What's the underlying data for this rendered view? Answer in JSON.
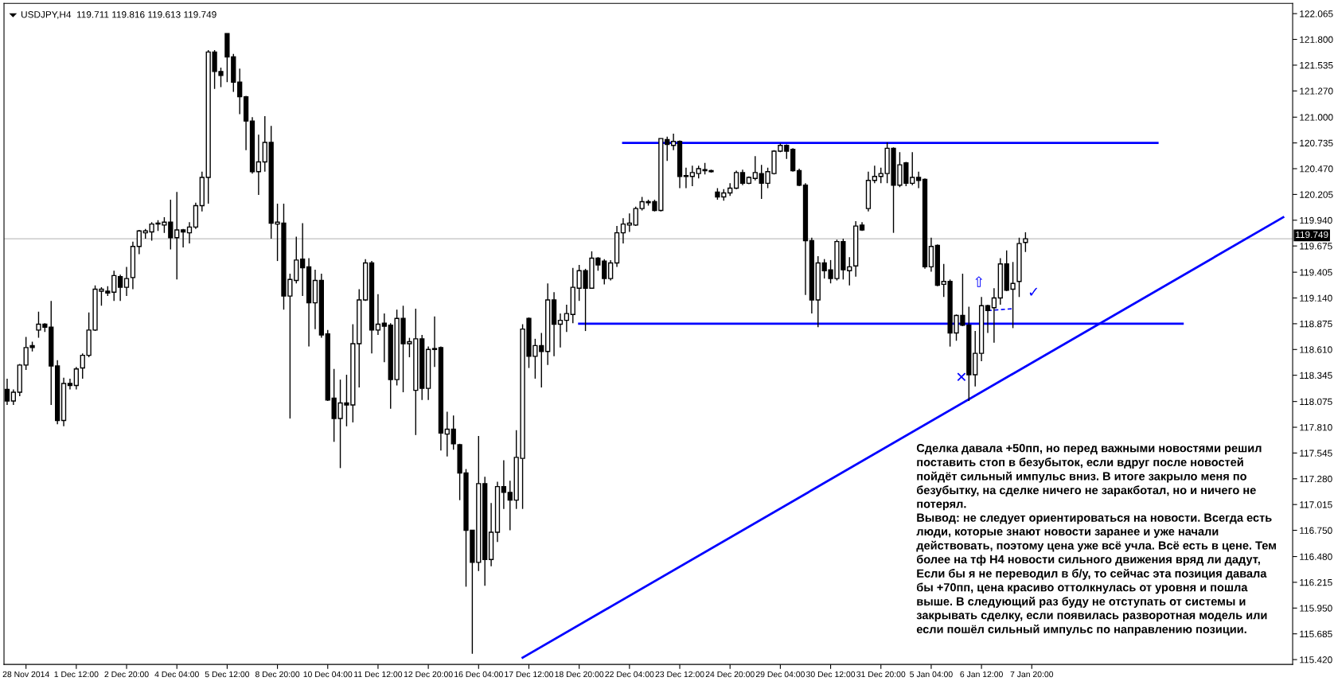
{
  "chart_data": {
    "type": "candlestick",
    "title": "USDJPY,H4  119.711 119.816 119.613 119.749",
    "categories": [
      null,
      null,
      null,
      "28 Nov 2014",
      null,
      null,
      null,
      null,
      null,
      null,
      null,
      "1 Dec 12:00",
      null,
      null,
      null,
      null,
      null,
      null,
      null,
      "2 Dec 20:00",
      null,
      null,
      null,
      null,
      null,
      null,
      null,
      "4 Dec 04:00",
      null,
      null,
      null,
      null,
      null,
      null,
      null,
      "5 Dec 12:00",
      null,
      null,
      null,
      null,
      null,
      null,
      null,
      "8 Dec 20:00",
      null,
      null,
      null,
      null,
      null,
      null,
      null,
      "10 Dec 04:00",
      null,
      null,
      null,
      null,
      null,
      null,
      null,
      "11 Dec 12:00",
      null,
      null,
      null,
      null,
      null,
      null,
      null,
      "12 Dec 20:00",
      null,
      null,
      null,
      null,
      null,
      null,
      null,
      "16 Dec 04:00",
      null,
      null,
      null,
      null,
      null,
      null,
      null,
      "17 Dec 12:00",
      null,
      null,
      null,
      null,
      null,
      null,
      null,
      "18 Dec 20:00",
      null,
      null,
      null,
      null,
      null,
      null,
      null,
      "22 Dec 04:00",
      null,
      null,
      null,
      null,
      null,
      null,
      null,
      "23 Dec 12:00",
      null,
      null,
      null,
      null,
      null,
      null,
      null,
      "24 Dec 20:00",
      null,
      null,
      null,
      null,
      null,
      null,
      null,
      "29 Dec 04:00",
      null,
      null,
      null,
      null,
      null,
      null,
      null,
      "30 Dec 12:00",
      null,
      null,
      null,
      null,
      null,
      null,
      null,
      "31 Dec 20:00",
      null,
      null,
      null,
      null,
      null,
      null,
      null,
      "5 Jan 04:00",
      null,
      null,
      null,
      null,
      null,
      null,
      null,
      "6 Jan 12:00",
      null,
      null,
      null,
      null,
      null,
      null,
      null,
      "7 Jan 20:00",
      null,
      null,
      null,
      null,
      null,
      null,
      null,
      null,
      null,
      null,
      null,
      null,
      null,
      null,
      null,
      null,
      null,
      null,
      null,
      null,
      null,
      null,
      null,
      null,
      null,
      null,
      null,
      null,
      null,
      null,
      null,
      null,
      null,
      null,
      null,
      null,
      null,
      null,
      null,
      null,
      null
    ],
    "ylim": [
      115.37,
      122.17
    ],
    "yticks": [
      {
        "value": 122.065,
        "label": "122.065"
      },
      {
        "value": 121.8,
        "label": "121.800"
      },
      {
        "value": 121.535,
        "label": "121.535"
      },
      {
        "value": 121.27,
        "label": "121.270"
      },
      {
        "value": 121.0,
        "label": "121.000"
      },
      {
        "value": 120.735,
        "label": "120.735"
      },
      {
        "value": 120.47,
        "label": "120.470"
      },
      {
        "value": 120.205,
        "label": "120.205"
      },
      {
        "value": 119.94,
        "label": "119.940"
      },
      {
        "value": 119.675,
        "label": "119.675"
      },
      {
        "value": 119.405,
        "label": "119.405"
      },
      {
        "value": 119.14,
        "label": "119.140"
      },
      {
        "value": 118.875,
        "label": "118.875"
      },
      {
        "value": 118.61,
        "label": "118.610"
      },
      {
        "value": 118.345,
        "label": "118.345"
      },
      {
        "value": 118.075,
        "label": "118.075"
      },
      {
        "value": 117.81,
        "label": "117.810"
      },
      {
        "value": 117.545,
        "label": "117.545"
      },
      {
        "value": 117.28,
        "label": "117.280"
      },
      {
        "value": 117.015,
        "label": "117.015"
      },
      {
        "value": 116.75,
        "label": "116.750"
      },
      {
        "value": 116.48,
        "label": "116.480"
      },
      {
        "value": 116.215,
        "label": "116.215"
      },
      {
        "value": 115.95,
        "label": "115.950"
      },
      {
        "value": 115.685,
        "label": "115.685"
      },
      {
        "value": 115.42,
        "label": "115.420"
      }
    ],
    "ref_lines": [
      {
        "axis": "y",
        "value": 119.749,
        "label": "119.749",
        "color": "#c0c0c0"
      }
    ],
    "ohlc": [
      [
        118.2,
        118.31,
        118.04,
        118.08
      ],
      [
        118.08,
        118.2,
        118.04,
        118.17
      ],
      [
        118.17,
        118.46,
        118.13,
        118.45
      ],
      [
        118.45,
        118.74,
        118.4,
        118.63
      ],
      [
        118.65,
        118.69,
        118.59,
        118.63
      ],
      [
        118.81,
        119.0,
        118.73,
        118.87
      ],
      [
        118.87,
        118.88,
        118.79,
        118.84
      ],
      [
        118.84,
        119.11,
        118.04,
        118.44
      ],
      [
        118.44,
        118.5,
        117.84,
        117.88
      ],
      [
        117.88,
        118.32,
        117.82,
        118.26
      ],
      [
        118.26,
        118.31,
        118.2,
        118.24
      ],
      [
        118.24,
        118.43,
        118.2,
        118.41
      ],
      [
        118.42,
        118.57,
        118.31,
        118.55
      ],
      [
        118.55,
        118.99,
        118.53,
        118.81
      ],
      [
        118.81,
        119.27,
        118.8,
        119.23
      ],
      [
        119.21,
        119.25,
        119.06,
        119.23
      ],
      [
        119.21,
        119.26,
        119.16,
        119.19
      ],
      [
        119.2,
        119.42,
        119.11,
        119.37
      ],
      [
        119.36,
        119.38,
        119.11,
        119.25
      ],
      [
        119.25,
        119.46,
        119.16,
        119.34
      ],
      [
        119.35,
        119.72,
        119.23,
        119.67
      ],
      [
        119.67,
        119.84,
        119.59,
        119.83
      ],
      [
        119.81,
        119.85,
        119.75,
        119.83
      ],
      [
        119.82,
        119.92,
        119.73,
        119.9
      ],
      [
        119.9,
        119.94,
        119.83,
        119.91
      ],
      [
        119.89,
        119.97,
        119.81,
        119.92
      ],
      [
        119.92,
        120.15,
        119.64,
        119.76
      ],
      [
        119.76,
        120.23,
        119.33,
        119.84
      ],
      [
        119.84,
        119.85,
        119.66,
        119.82
      ],
      [
        119.81,
        119.92,
        119.7,
        119.87
      ],
      [
        119.87,
        120.12,
        119.85,
        120.09
      ],
      [
        120.09,
        120.44,
        120.03,
        120.38
      ],
      [
        120.38,
        121.69,
        120.11,
        121.67
      ],
      [
        121.67,
        121.69,
        121.29,
        121.47
      ],
      [
        121.47,
        121.51,
        121.31,
        121.43
      ],
      [
        121.86,
        121.86,
        121.36,
        121.62
      ],
      [
        121.62,
        121.65,
        121.26,
        121.36
      ],
      [
        121.36,
        121.5,
        121.03,
        121.21
      ],
      [
        121.21,
        121.22,
        120.66,
        120.96
      ],
      [
        120.96,
        121.0,
        120.42,
        120.44
      ],
      [
        120.44,
        120.82,
        120.2,
        120.54
      ],
      [
        120.54,
        121.01,
        120.44,
        120.74
      ],
      [
        120.74,
        120.91,
        119.75,
        119.91
      ],
      [
        119.9,
        120.11,
        119.52,
        119.92
      ],
      [
        119.91,
        120.11,
        119.02,
        119.16
      ],
      [
        119.16,
        119.39,
        117.9,
        119.33
      ],
      [
        119.32,
        119.77,
        119.29,
        119.53
      ],
      [
        119.54,
        119.91,
        119.16,
        119.45
      ],
      [
        119.46,
        119.55,
        118.64,
        119.09
      ],
      [
        119.09,
        119.43,
        118.82,
        119.32
      ],
      [
        119.32,
        119.39,
        118.73,
        118.76
      ],
      [
        118.77,
        118.81,
        118.08,
        118.09
      ],
      [
        118.11,
        118.41,
        117.66,
        117.9
      ],
      [
        117.9,
        118.3,
        117.39,
        118.06
      ],
      [
        118.06,
        118.35,
        117.82,
        118.04
      ],
      [
        118.04,
        118.87,
        117.86,
        118.67
      ],
      [
        118.67,
        119.23,
        118.22,
        119.12
      ],
      [
        119.12,
        119.54,
        119.11,
        119.5
      ],
      [
        119.5,
        119.52,
        118.57,
        118.81
      ],
      [
        118.81,
        119.18,
        118.76,
        118.87
      ],
      [
        118.88,
        118.98,
        118.48,
        118.85
      ],
      [
        118.86,
        118.88,
        118.0,
        118.3
      ],
      [
        118.3,
        119.02,
        118.24,
        118.93
      ],
      [
        118.93,
        119.06,
        118.17,
        118.67
      ],
      [
        118.67,
        118.73,
        118.53,
        118.69
      ],
      [
        118.19,
        119.03,
        117.73,
        118.72
      ],
      [
        118.72,
        118.76,
        118.09,
        118.21
      ],
      [
        118.21,
        118.64,
        118.09,
        118.61
      ],
      [
        118.62,
        118.95,
        118.43,
        118.61
      ],
      [
        118.63,
        118.64,
        117.57,
        117.75
      ],
      [
        117.74,
        117.97,
        117.51,
        117.79
      ],
      [
        117.79,
        117.93,
        117.58,
        117.64
      ],
      [
        117.63,
        117.64,
        117.06,
        117.34
      ],
      [
        117.34,
        117.38,
        116.17,
        116.75
      ],
      [
        116.75,
        116.75,
        115.48,
        116.42
      ],
      [
        116.42,
        117.72,
        116.33,
        117.23
      ],
      [
        117.23,
        117.3,
        116.18,
        116.45
      ],
      [
        116.45,
        117.03,
        116.38,
        116.73
      ],
      [
        116.73,
        117.25,
        116.63,
        117.2
      ],
      [
        117.2,
        117.47,
        116.97,
        117.14
      ],
      [
        117.14,
        117.26,
        116.75,
        117.06
      ],
      [
        117.06,
        117.78,
        116.97,
        117.5
      ],
      [
        117.49,
        118.87,
        116.97,
        118.82
      ],
      [
        118.93,
        118.94,
        118.42,
        118.54
      ],
      [
        118.54,
        118.72,
        118.31,
        118.65
      ],
      [
        118.65,
        118.78,
        118.22,
        118.59
      ],
      [
        118.59,
        119.29,
        118.45,
        119.12
      ],
      [
        119.12,
        119.2,
        118.54,
        118.87
      ],
      [
        118.87,
        118.98,
        118.63,
        118.91
      ],
      [
        118.91,
        119.07,
        118.79,
        118.98
      ],
      [
        118.97,
        119.45,
        118.88,
        119.25
      ],
      [
        119.24,
        119.48,
        119.11,
        119.42
      ],
      [
        119.42,
        119.44,
        118.8,
        119.24
      ],
      [
        119.24,
        119.62,
        119.24,
        119.55
      ],
      [
        119.55,
        119.56,
        119.42,
        119.48
      ],
      [
        119.52,
        119.54,
        119.28,
        119.34
      ],
      [
        119.34,
        119.53,
        119.32,
        119.5
      ],
      [
        119.5,
        119.88,
        119.46,
        119.81
      ],
      [
        119.81,
        119.96,
        119.7,
        119.9
      ],
      [
        119.89,
        120.01,
        119.82,
        119.91
      ],
      [
        119.89,
        120.08,
        119.88,
        120.06
      ],
      [
        120.06,
        120.18,
        120.04,
        120.13
      ],
      [
        120.12,
        120.15,
        120.09,
        120.13
      ],
      [
        120.13,
        120.15,
        120.03,
        120.04
      ],
      [
        120.04,
        120.78,
        120.03,
        120.78
      ],
      [
        120.77,
        120.8,
        120.55,
        120.72
      ],
      [
        120.71,
        120.83,
        120.66,
        120.75
      ],
      [
        120.75,
        120.76,
        120.27,
        120.39
      ],
      [
        120.4,
        120.48,
        120.27,
        120.39
      ],
      [
        120.39,
        120.5,
        120.29,
        120.43
      ],
      [
        120.42,
        120.5,
        120.37,
        120.47
      ],
      [
        120.46,
        120.53,
        120.41,
        120.45
      ],
      [
        120.45,
        120.46,
        120.43,
        120.44
      ],
      [
        120.23,
        120.27,
        120.15,
        120.18
      ],
      [
        120.18,
        120.26,
        120.14,
        120.22
      ],
      [
        120.22,
        120.32,
        120.19,
        120.27
      ],
      [
        120.27,
        120.45,
        120.26,
        120.43
      ],
      [
        120.43,
        120.46,
        120.3,
        120.32
      ],
      [
        120.32,
        120.39,
        120.31,
        120.38
      ],
      [
        120.37,
        120.6,
        120.35,
        120.43
      ],
      [
        120.42,
        120.51,
        120.16,
        120.32
      ],
      [
        120.32,
        120.48,
        120.27,
        120.44
      ],
      [
        120.42,
        120.66,
        120.41,
        120.65
      ],
      [
        120.65,
        120.73,
        120.64,
        120.71
      ],
      [
        120.71,
        120.72,
        120.57,
        120.65
      ],
      [
        120.67,
        120.68,
        120.44,
        120.45
      ],
      [
        120.45,
        120.47,
        120.29,
        120.3
      ],
      [
        120.3,
        120.32,
        119.17,
        119.73
      ],
      [
        119.73,
        119.76,
        118.98,
        119.12
      ],
      [
        119.12,
        119.57,
        118.84,
        119.5
      ],
      [
        119.5,
        119.54,
        119.34,
        119.42
      ],
      [
        119.43,
        119.53,
        119.29,
        119.34
      ],
      [
        119.34,
        119.74,
        119.32,
        119.72
      ],
      [
        119.72,
        119.75,
        119.33,
        119.43
      ],
      [
        119.42,
        119.56,
        119.27,
        119.46
      ],
      [
        119.47,
        119.93,
        119.36,
        119.88
      ],
      [
        119.89,
        119.92,
        119.83,
        119.84
      ],
      [
        120.06,
        120.44,
        120.03,
        120.35
      ],
      [
        120.35,
        120.5,
        120.32,
        120.39
      ],
      [
        120.39,
        120.48,
        120.32,
        120.42
      ],
      [
        120.42,
        120.74,
        120.32,
        120.68
      ],
      [
        120.68,
        120.69,
        119.81,
        120.3
      ],
      [
        120.3,
        120.64,
        120.28,
        120.51
      ],
      [
        120.53,
        120.54,
        120.29,
        120.32
      ],
      [
        120.32,
        120.64,
        120.3,
        120.38
      ],
      [
        120.38,
        120.44,
        120.27,
        120.35
      ],
      [
        120.36,
        120.37,
        119.44,
        119.46
      ],
      [
        119.46,
        119.76,
        119.41,
        119.67
      ],
      [
        119.68,
        119.69,
        119.26,
        119.27
      ],
      [
        119.28,
        119.49,
        119.15,
        119.31
      ],
      [
        119.31,
        119.33,
        118.64,
        118.78
      ],
      [
        118.78,
        118.97,
        118.7,
        118.96
      ],
      [
        118.96,
        119.39,
        118.85,
        118.86
      ],
      [
        118.86,
        119.05,
        118.08,
        118.35
      ],
      [
        118.35,
        118.8,
        118.23,
        118.57
      ],
      [
        118.57,
        119.15,
        118.49,
        119.06
      ],
      [
        119.06,
        119.07,
        118.78,
        119.01
      ],
      [
        119.04,
        119.24,
        118.68,
        119.14
      ],
      [
        119.14,
        119.55,
        119.07,
        119.49
      ],
      [
        119.49,
        119.63,
        119.21,
        119.22
      ],
      [
        119.23,
        119.51,
        118.83,
        119.29
      ],
      [
        119.31,
        119.76,
        119.15,
        119.7
      ],
      [
        119.711,
        119.816,
        119.613,
        119.749
      ],
      null,
      null,
      null,
      null,
      null,
      null,
      null,
      null,
      null,
      null,
      null,
      null,
      null,
      null,
      null,
      null,
      null,
      null,
      null,
      null,
      null,
      null,
      null,
      null,
      null,
      null,
      null,
      null,
      null,
      null,
      null,
      null,
      null,
      null,
      null,
      null,
      null,
      null,
      null,
      null,
      null,
      null
    ],
    "series": [
      {
        "type": "line",
        "color": "#0000ff",
        "values": [
          null,
          null,
          null,
          null,
          null,
          null,
          null,
          null,
          null,
          null,
          null,
          null,
          null,
          null,
          null,
          null,
          null,
          null,
          null,
          null,
          null,
          null,
          null,
          null,
          null,
          null,
          null,
          null,
          null,
          null,
          null,
          null,
          null,
          null,
          null,
          null,
          null,
          null,
          null,
          null,
          null,
          null,
          null,
          null,
          null,
          null,
          null,
          null,
          null,
          null,
          null,
          null,
          null,
          null,
          null,
          null,
          null,
          null,
          null,
          null,
          null,
          null,
          null,
          null,
          null,
          null,
          null,
          null,
          null,
          null,
          null,
          null,
          null,
          null,
          null,
          null,
          null,
          null,
          null,
          null,
          null,
          null,
          null,
          null,
          null,
          null,
          null,
          null,
          null,
          null,
          null,
          null,
          null,
          null,
          null,
          null,
          null,
          null,
          120.735,
          null,
          null,
          null,
          null,
          null,
          null,
          null,
          null,
          null,
          null,
          null,
          null,
          null,
          null,
          null,
          null,
          null,
          null,
          null,
          null,
          null,
          null,
          null,
          null,
          null,
          null,
          null,
          null,
          null,
          null,
          null,
          null,
          null,
          null,
          null,
          null,
          null,
          null,
          null,
          null,
          null,
          null,
          null,
          null,
          null,
          null,
          null,
          null,
          null,
          null,
          null,
          null,
          null,
          null,
          null,
          null,
          null,
          null,
          null,
          null,
          null,
          null,
          null,
          null,
          null,
          null,
          null,
          null,
          null,
          null,
          null,
          null,
          null,
          null,
          null,
          null,
          null,
          null,
          null,
          null,
          null,
          null,
          null,
          null,
          120.735,
          null,
          null,
          null,
          null,
          null,
          null,
          null,
          null,
          null,
          null,
          null,
          null,
          null,
          null,
          null,
          null,
          null,
          null,
          null,
          null,
          null
        ]
      },
      {
        "type": "line",
        "color": "#0000ff",
        "values": [
          null,
          null,
          null,
          null,
          null,
          null,
          null,
          null,
          null,
          null,
          null,
          null,
          null,
          null,
          null,
          null,
          null,
          null,
          null,
          null,
          null,
          null,
          null,
          null,
          null,
          null,
          null,
          null,
          null,
          null,
          null,
          null,
          null,
          null,
          null,
          null,
          null,
          null,
          null,
          null,
          null,
          null,
          null,
          null,
          null,
          null,
          null,
          null,
          null,
          null,
          null,
          null,
          null,
          null,
          null,
          null,
          null,
          null,
          null,
          null,
          null,
          null,
          null,
          null,
          null,
          null,
          null,
          null,
          null,
          null,
          null,
          null,
          null,
          null,
          null,
          null,
          null,
          null,
          null,
          null,
          null,
          null,
          null,
          null,
          null,
          null,
          null,
          null,
          null,
          null,
          null,
          118.875,
          null,
          null,
          null,
          null,
          null,
          null,
          null,
          null,
          null,
          null,
          null,
          null,
          null,
          null,
          null,
          null,
          null,
          null,
          null,
          null,
          null,
          null,
          null,
          null,
          null,
          null,
          null,
          null,
          null,
          null,
          null,
          null,
          null,
          null,
          null,
          null,
          null,
          null,
          null,
          null,
          null,
          null,
          null,
          null,
          null,
          null,
          null,
          null,
          null,
          null,
          null,
          null,
          null,
          null,
          null,
          null,
          null,
          null,
          null,
          null,
          null,
          null,
          null,
          null,
          null,
          null,
          null,
          null,
          null,
          null,
          null,
          null,
          null,
          null,
          null,
          null,
          null,
          null,
          null,
          null,
          null,
          null,
          null,
          null,
          null,
          null,
          null,
          null,
          null,
          null,
          null,
          null,
          null,
          null,
          null,
          118.875,
          null,
          null,
          null,
          null,
          null,
          null,
          null,
          null,
          null,
          null,
          null,
          null,
          null,
          null,
          null,
          null,
          null
        ]
      },
      {
        "type": "line",
        "color": "#0000ff",
        "values": [
          null,
          null,
          null,
          null,
          null,
          null,
          null,
          null,
          null,
          null,
          null,
          null,
          null,
          null,
          null,
          null,
          null,
          null,
          null,
          null,
          null,
          null,
          null,
          null,
          null,
          null,
          null,
          null,
          null,
          null,
          null,
          null,
          null,
          null,
          null,
          null,
          null,
          null,
          null,
          null,
          null,
          null,
          null,
          null,
          null,
          null,
          null,
          null,
          null,
          null,
          null,
          null,
          null,
          null,
          null,
          null,
          null,
          null,
          null,
          null,
          null,
          null,
          null,
          null,
          null,
          null,
          null,
          null,
          null,
          null,
          null,
          null,
          null,
          null,
          null,
          null,
          null,
          null,
          null,
          null,
          null,
          null,
          115.44,
          null,
          null,
          null,
          null,
          null,
          null,
          null,
          null,
          null,
          null,
          null,
          null,
          null,
          null,
          null,
          null,
          null,
          null,
          null,
          null,
          null,
          null,
          null,
          null,
          null,
          null,
          null,
          null,
          null,
          null,
          null,
          null,
          null,
          null,
          null,
          null,
          null,
          null,
          null,
          null,
          null,
          null,
          null,
          null,
          null,
          null,
          null,
          null,
          null,
          null,
          null,
          null,
          null,
          null,
          null,
          null,
          null,
          null,
          null,
          null,
          null,
          null,
          null,
          null,
          null,
          null,
          null,
          null,
          null,
          null,
          null,
          null,
          null,
          null,
          null,
          null,
          null,
          null,
          null,
          null,
          null,
          null,
          null,
          null,
          null,
          null,
          null,
          null,
          null,
          null,
          null,
          null,
          null,
          null,
          null,
          null,
          null,
          null,
          null,
          null,
          null,
          null,
          null,
          null,
          null,
          null,
          null,
          null,
          null,
          null,
          null,
          null,
          null,
          null,
          null,
          null,
          null,
          null,
          null,
          null,
          119.97,
          null
        ]
      },
      {
        "type": "line",
        "color": "#0000ff",
        "line_style": "dashed",
        "values": [
          null,
          null,
          null,
          null,
          null,
          null,
          null,
          null,
          null,
          null,
          null,
          null,
          null,
          null,
          null,
          null,
          null,
          null,
          null,
          null,
          null,
          null,
          null,
          null,
          null,
          null,
          null,
          null,
          null,
          null,
          null,
          null,
          null,
          null,
          null,
          null,
          null,
          null,
          null,
          null,
          null,
          null,
          null,
          null,
          null,
          null,
          null,
          null,
          null,
          null,
          null,
          null,
          null,
          null,
          null,
          null,
          null,
          null,
          null,
          null,
          null,
          null,
          null,
          null,
          null,
          null,
          null,
          null,
          null,
          null,
          null,
          null,
          null,
          null,
          null,
          null,
          null,
          null,
          null,
          null,
          null,
          null,
          null,
          null,
          null,
          null,
          null,
          null,
          null,
          null,
          null,
          null,
          null,
          null,
          null,
          null,
          null,
          null,
          null,
          null,
          null,
          null,
          null,
          null,
          null,
          null,
          null,
          null,
          null,
          null,
          null,
          null,
          null,
          null,
          null,
          null,
          null,
          null,
          null,
          null,
          null,
          null,
          null,
          null,
          null,
          null,
          null,
          null,
          null,
          null,
          null,
          null,
          null,
          null,
          null,
          null,
          null,
          null,
          null,
          null,
          null,
          null,
          null,
          null,
          null,
          null,
          null,
          null,
          null,
          null,
          null,
          null,
          null,
          null,
          null,
          null,
          119.01,
          null,
          null,
          null,
          119.03,
          null,
          null,
          null,
          null,
          null,
          null,
          null,
          null,
          null,
          null,
          null,
          null,
          null,
          null,
          null,
          null,
          null,
          null,
          null,
          null,
          null,
          null,
          null,
          null,
          null,
          null,
          null,
          null,
          null,
          null,
          null,
          null,
          null,
          null,
          null,
          null,
          null,
          null,
          null,
          null,
          null,
          null,
          null,
          null
        ]
      }
    ],
    "annotations": [
      "⇧",
      "✓",
      "✕",
      "Сделка давала +50пп, но перед важными новостями решил\nпоставить стоп в безубыток, если вдруг после новостей\nпойдёт сильный импульс вниз. В итоге закрыло меня по\nбезубытку, на сделке ничего не заракботал, но и ничего не\nпотерял.\nВывод: не следует ориентироваться на новости. Всегда есть\nлюди, которые знают новости заранее и уже начали\nдействовать, поэтому цена уже всё учла. Всё есть в цене. Тем\nболее на тф H4 новости сильного движения вряд ли дадут,\nЕсли бы я не переводил в б/у, то сейчас эта позиция давала\nбы +70пп, цена красиво оттолкнулась от уровня и пошла\nвыше. В следующий раз буду не отступать от системы и\nзакрывать сделку, если появилась разворотная модель или\nесли пошёл сильный импульс по направлению позиции."
    ]
  }
}
